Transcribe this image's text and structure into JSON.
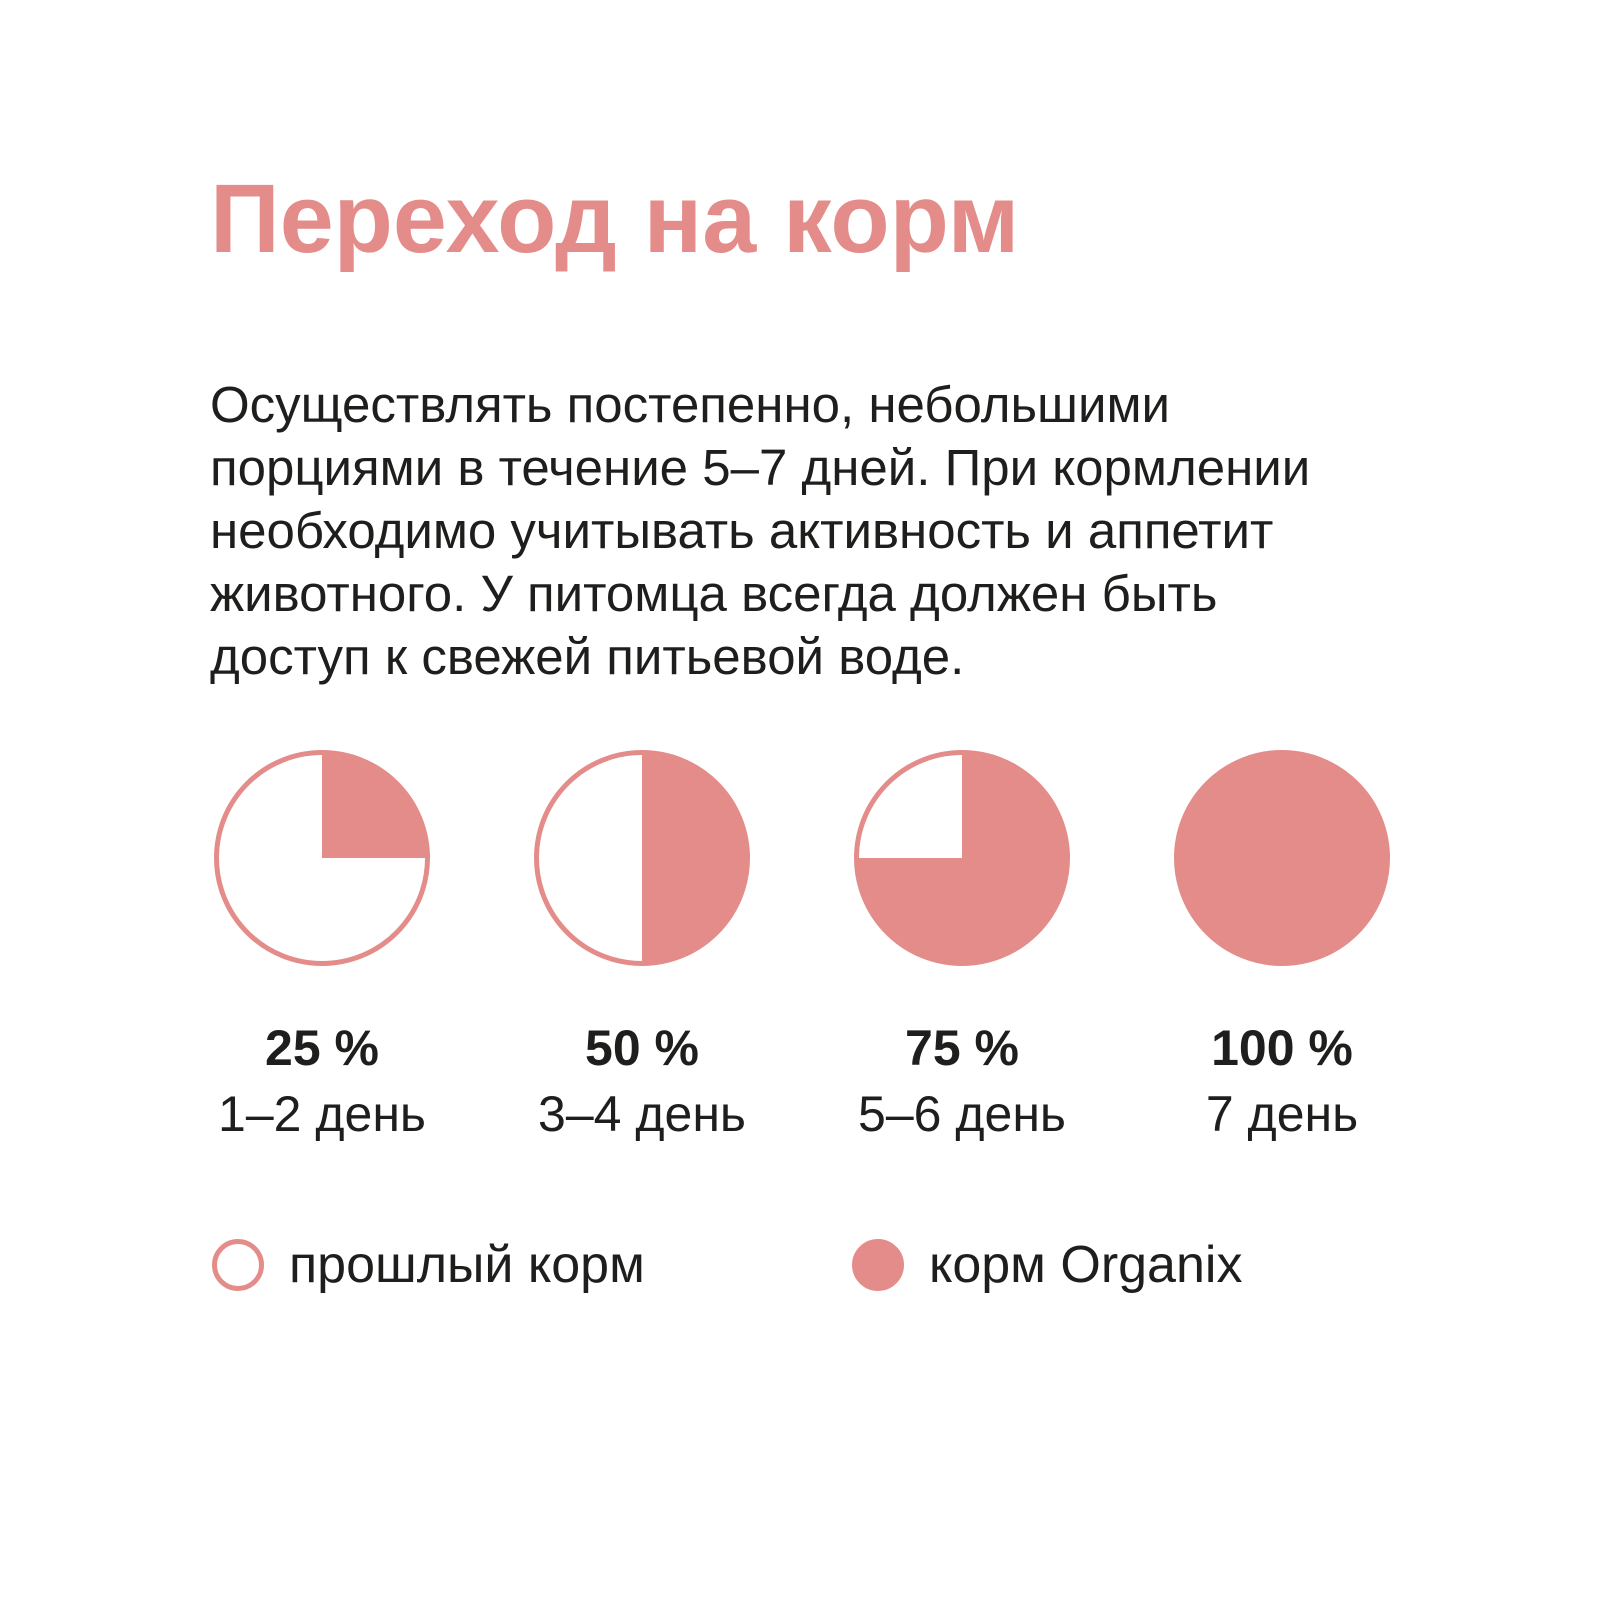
{
  "page": {
    "background_color": "#ffffff",
    "accent_color": "#e38c8a",
    "text_color": "#1e1e1c"
  },
  "header": {
    "title": "Переход на корм"
  },
  "intro": {
    "lines": [
      "Осуществлять постепенно, небольшими",
      "порциями в течение 5–7 дней. При кормлении",
      "необходимо учитывать активность и аппетит",
      "животного. У питомца всегда должен быть",
      "доступ к свежей питьевой воде."
    ]
  },
  "chart_data": {
    "type": "pie",
    "title": "Переход на корм",
    "unit": "%",
    "stages": [
      {
        "organix_percent": 25,
        "old_percent": 75,
        "percent_label": "25 %",
        "day_label": "1–2 день"
      },
      {
        "organix_percent": 50,
        "old_percent": 50,
        "percent_label": "50 %",
        "day_label": "3–4 день"
      },
      {
        "organix_percent": 75,
        "old_percent": 25,
        "percent_label": "75 %",
        "day_label": "5–6 день"
      },
      {
        "organix_percent": 100,
        "old_percent": 0,
        "percent_label": "100 %",
        "day_label": "7 день"
      }
    ],
    "legend": [
      {
        "swatch": "outline",
        "label": "прошлый корм"
      },
      {
        "swatch": "filled",
        "label": "корм Organix"
      }
    ],
    "colors": {
      "organix": "#e38c8a",
      "old_food": "#ffffff",
      "outline": "#e38c8a"
    },
    "layout": {
      "start_angle": "12-oclock",
      "direction": "clockwise",
      "legend_position": "bottom"
    }
  }
}
